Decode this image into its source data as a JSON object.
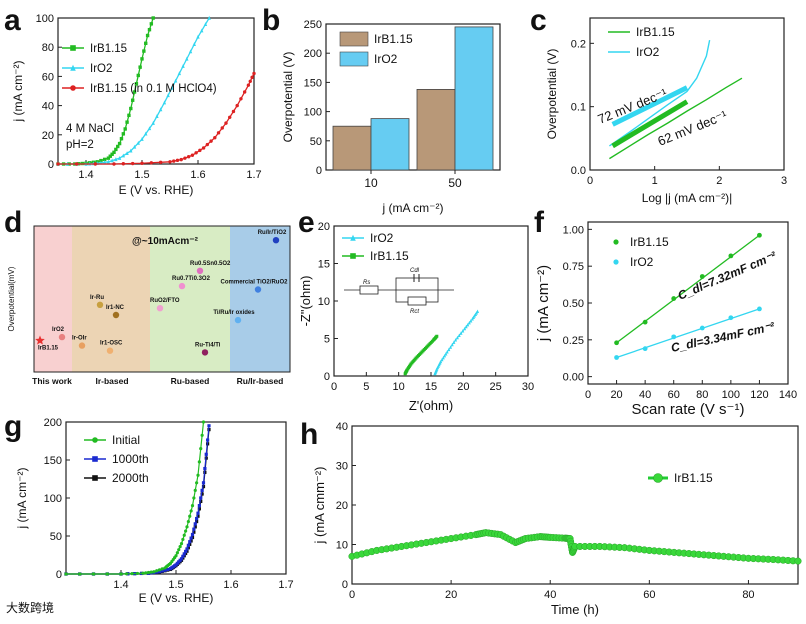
{
  "chart_data": [
    {
      "panel": "a",
      "type": "line",
      "xlabel": "E (V vs. RHE)",
      "ylabel": "j (mA cm⁻²)",
      "xlim": [
        1.35,
        1.7
      ],
      "ylim": [
        0,
        100
      ],
      "xticks": [
        "1.4",
        "1.5",
        "1.6",
        "1.7"
      ],
      "yticks": [
        "0",
        "20",
        "40",
        "60",
        "80",
        "100"
      ],
      "annotations": [
        "4 M NaCl",
        "pH=2"
      ],
      "legend_position": "top-left",
      "series": [
        {
          "name": "IrB1.15",
          "color": "#22bb22",
          "marker": "square",
          "x": [
            1.35,
            1.38,
            1.4,
            1.42,
            1.44,
            1.45,
            1.46,
            1.47,
            1.48,
            1.49,
            1.5,
            1.51,
            1.52
          ],
          "y": [
            0,
            0,
            0.5,
            1.5,
            4,
            8,
            14,
            24,
            38,
            55,
            72,
            88,
            100
          ]
        },
        {
          "name": "IrO2",
          "color": "#33d6f0",
          "marker": "triangle",
          "x": [
            1.35,
            1.4,
            1.42,
            1.44,
            1.46,
            1.48,
            1.5,
            1.52,
            1.54,
            1.56,
            1.58,
            1.6,
            1.62
          ],
          "y": [
            0,
            0,
            0.5,
            1.5,
            4,
            9,
            17,
            28,
            42,
            57,
            72,
            87,
            100
          ]
        },
        {
          "name": "IrB1.15 (in 0.1 M HClO4)",
          "color": "#dd2222",
          "marker": "circle",
          "x": [
            1.35,
            1.45,
            1.5,
            1.55,
            1.57,
            1.59,
            1.61,
            1.63,
            1.65,
            1.67,
            1.69,
            1.7
          ],
          "y": [
            0,
            0,
            0.5,
            1.5,
            3,
            6,
            11,
            18,
            28,
            40,
            54,
            62
          ]
        }
      ]
    },
    {
      "panel": "b",
      "type": "bar",
      "xlabel": "j (mA cm⁻²)",
      "ylabel": "Overpotential (V)",
      "categories": [
        "10",
        "50"
      ],
      "ylim": [
        0,
        250
      ],
      "yticks": [
        "0",
        "50",
        "100",
        "150",
        "200",
        "250"
      ],
      "legend_position": "top-left",
      "series": [
        {
          "name": "IrB1.15",
          "color": "#b89878",
          "values": [
            75,
            138
          ]
        },
        {
          "name": "IrO2",
          "color": "#66ccf2",
          "values": [
            88,
            245
          ]
        }
      ]
    },
    {
      "panel": "c",
      "type": "line",
      "xlabel": "Log |j (mA cm⁻²)|",
      "ylabel": "Overpotential (V)",
      "xlim": [
        0,
        3
      ],
      "ylim": [
        0,
        0.24
      ],
      "xticks": [
        "0",
        "1",
        "2",
        "3"
      ],
      "yticks": [
        "0.0",
        "0.1",
        "0.2"
      ],
      "annotations": [
        {
          "text": "72 mV dec⁻¹",
          "color": "#33d6f0"
        },
        {
          "text": "62 mV dec⁻¹",
          "color": "#22bb22"
        }
      ],
      "legend_position": "top-left",
      "series": [
        {
          "name": "IrB1.15",
          "color": "#22bb22",
          "x": [
            0.3,
            0.6,
            0.9,
            1.2,
            1.5,
            1.8,
            2.1,
            2.35
          ],
          "y": [
            0.018,
            0.037,
            0.056,
            0.074,
            0.093,
            0.111,
            0.13,
            0.145
          ]
        },
        {
          "name": "IrO2",
          "color": "#33d6f0",
          "x": [
            0.3,
            0.6,
            0.9,
            1.2,
            1.5,
            1.65,
            1.8,
            1.85
          ],
          "y": [
            0.038,
            0.059,
            0.081,
            0.103,
            0.124,
            0.145,
            0.18,
            0.205
          ]
        }
      ]
    },
    {
      "panel": "d",
      "type": "scatter",
      "ylabel": "Overpotential(mV)",
      "title": "@~10mAcm⁻²",
      "categories": [
        "This work",
        "Ir-based",
        "Ru-based",
        "Ru/Ir-based"
      ],
      "points": [
        {
          "label": "IrB1.15",
          "group": "This work",
          "y": 75,
          "color": "#e83030"
        },
        {
          "label": "IrO2",
          "group": "This work",
          "y": 85,
          "color": "#e88080"
        },
        {
          "label": "Ir-OIr",
          "group": "Ir-based",
          "y": 60,
          "color": "#e8a060"
        },
        {
          "label": "Ir1-OSC",
          "group": "Ir-based",
          "y": 45,
          "color": "#f0b070"
        },
        {
          "label": "Ir-Ru",
          "group": "Ir-based",
          "y": 180,
          "color": "#c8a040"
        },
        {
          "label": "Ir1-NC",
          "group": "Ir-based",
          "y": 150,
          "color": "#a07020"
        },
        {
          "label": "Ru0.5Sn0.5O2",
          "group": "Ru-based",
          "y": 280,
          "color": "#e070c0"
        },
        {
          "label": "Ru0.7Ti0.3O2",
          "group": "Ru-based",
          "y": 235,
          "color": "#f090d0"
        },
        {
          "label": "RuO2/FTO",
          "group": "Ru-based",
          "y": 170,
          "color": "#f0a0d0"
        },
        {
          "label": "Ru-Ti4/Ti",
          "group": "Ru-based",
          "y": 40,
          "color": "#902060"
        },
        {
          "label": "Ru/Ir/TiO2",
          "group": "Ru/Ir-based",
          "y": 370,
          "color": "#2040c0"
        },
        {
          "label": "Commercial TiO2/RuO2",
          "group": "Ru/Ir-based",
          "y": 225,
          "color": "#4080e0"
        },
        {
          "label": "Ti/Ru/Ir oxides",
          "group": "Ru/Ir-based",
          "y": 135,
          "color": "#60b0f0"
        }
      ],
      "group_colors": [
        "#f8d0d0",
        "#ecd4b4",
        "#d8ecc4",
        "#a8cce8"
      ]
    },
    {
      "panel": "e",
      "type": "scatter",
      "xlabel": "Z'(ohm)",
      "ylabel": "-Z\"(ohm)",
      "xlim": [
        0,
        30
      ],
      "ylim": [
        0,
        20
      ],
      "xticks": [
        "0",
        "5",
        "10",
        "15",
        "20",
        "25",
        "30"
      ],
      "yticks": [
        "0",
        "5",
        "10",
        "15",
        "20"
      ],
      "legend_position": "top-left",
      "circuit_labels": [
        "Rs",
        "Cdl",
        "Rct"
      ],
      "series": [
        {
          "name": "IrO2",
          "color": "#33d6f0",
          "x": [
            15.6,
            15.9,
            16.5,
            17.5,
            18.8,
            20.2,
            21.4,
            22.2
          ],
          "y": [
            0.3,
            0.9,
            1.9,
            3.2,
            4.8,
            6.3,
            7.6,
            8.6
          ]
        },
        {
          "name": "IrB1.15",
          "color": "#22bb22",
          "x": [
            11.0,
            11.3,
            11.9,
            12.7,
            13.6,
            14.5,
            15.4,
            15.9
          ],
          "y": [
            0.3,
            0.8,
            1.6,
            2.4,
            3.2,
            4.0,
            4.8,
            5.3
          ]
        }
      ]
    },
    {
      "panel": "f",
      "type": "scatter",
      "xlabel": "Scan rate (V s⁻¹)",
      "ylabel": "j (mA cm⁻²)",
      "xlim": [
        0,
        140
      ],
      "ylim": [
        -0.05,
        1.05
      ],
      "xticks": [
        "0",
        "20",
        "40",
        "60",
        "80",
        "100",
        "120",
        "140"
      ],
      "yticks": [
        "0.00",
        "0.25",
        "0.50",
        "0.75",
        "1.00"
      ],
      "annotations": [
        {
          "text": "C_dl=7.32mF cm⁻²",
          "color": "#22bb22"
        },
        {
          "text": "C_dl=3.34mF cm⁻²",
          "color": "#33d6f0"
        }
      ],
      "legend_position": "top-left",
      "series": [
        {
          "name": "IrB1.15",
          "color": "#22bb22",
          "x": [
            20,
            40,
            60,
            80,
            100,
            120
          ],
          "y": [
            0.23,
            0.37,
            0.53,
            0.68,
            0.82,
            0.96
          ]
        },
        {
          "name": "IrO2",
          "color": "#33d6f0",
          "x": [
            20,
            40,
            60,
            80,
            100,
            120
          ],
          "y": [
            0.13,
            0.19,
            0.27,
            0.33,
            0.4,
            0.46
          ]
        }
      ]
    },
    {
      "panel": "g",
      "type": "line",
      "xlabel": "E (V vs. RHE)",
      "ylabel": "j (mA cm⁻²)",
      "xlim": [
        1.3,
        1.7
      ],
      "ylim": [
        0,
        200
      ],
      "xticks": [
        "1.4",
        "1.5",
        "1.6",
        "1.7"
      ],
      "yticks": [
        "0",
        "50",
        "100",
        "150",
        "200"
      ],
      "legend_position": "top-left",
      "series": [
        {
          "name": "Initial",
          "color": "#22bb22",
          "x": [
            1.3,
            1.4,
            1.44,
            1.46,
            1.48,
            1.49,
            1.5,
            1.51,
            1.52,
            1.53,
            1.54,
            1.55
          ],
          "y": [
            0,
            0,
            1,
            3,
            8,
            14,
            24,
            40,
            62,
            90,
            130,
            200
          ]
        },
        {
          "name": "1000th",
          "color": "#1a2ad0",
          "x": [
            1.3,
            1.4,
            1.45,
            1.47,
            1.49,
            1.5,
            1.51,
            1.52,
            1.53,
            1.54,
            1.55,
            1.56
          ],
          "y": [
            0,
            0,
            1,
            3,
            7,
            12,
            20,
            33,
            52,
            80,
            120,
            195
          ]
        },
        {
          "name": "2000th",
          "color": "#111111",
          "x": [
            1.3,
            1.4,
            1.45,
            1.47,
            1.49,
            1.5,
            1.51,
            1.52,
            1.53,
            1.54,
            1.55,
            1.56
          ],
          "y": [
            0,
            0,
            1,
            2.5,
            6,
            11,
            18,
            30,
            48,
            76,
            115,
            190
          ]
        }
      ]
    },
    {
      "panel": "h",
      "type": "line",
      "xlabel": "Time (h)",
      "ylabel": "j (mA cmm⁻²)",
      "xlim": [
        0,
        90
      ],
      "ylim": [
        0,
        40
      ],
      "xticks": [
        "0",
        "20",
        "40",
        "60",
        "80"
      ],
      "yticks": [
        "0",
        "10",
        "20",
        "30",
        "40"
      ],
      "legend_position": "right",
      "series": [
        {
          "name": "IrB1.15",
          "color": "#22cc33",
          "x": [
            0,
            5,
            10,
            15,
            20,
            25,
            27,
            30,
            33,
            35,
            38,
            40,
            43,
            44,
            44.5,
            45,
            50,
            55,
            60,
            65,
            70,
            75,
            80,
            85,
            90
          ],
          "y": [
            7,
            8.5,
            9.5,
            10.5,
            11.5,
            12.5,
            13,
            12.5,
            10.5,
            11.5,
            12,
            11.8,
            11.6,
            11.5,
            8,
            9.5,
            9.5,
            9.2,
            8.5,
            8.0,
            7.5,
            7.0,
            6.5,
            6.2,
            5.8
          ]
        }
      ]
    }
  ],
  "watermark": "大数跨境"
}
